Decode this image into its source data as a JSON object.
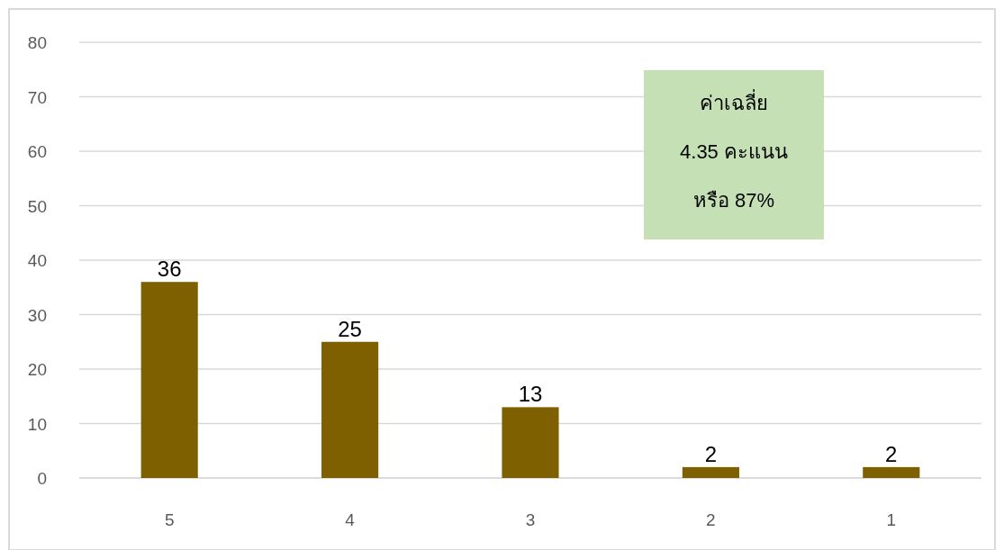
{
  "chart_data": {
    "type": "bar",
    "categories": [
      "5",
      "4",
      "3",
      "2",
      "1"
    ],
    "series": [
      {
        "color": "#7f6000",
        "values": [
          36,
          25,
          13,
          2,
          2
        ]
      }
    ],
    "ylim": [
      0,
      80
    ],
    "yticks": [
      0,
      10,
      20,
      30,
      40,
      50,
      60,
      70,
      80
    ],
    "grid": "y",
    "data_labels": true,
    "annotations": [
      "ค่าเฉลี่ย\n4.35 คะแนน\nหรือ 87%"
    ]
  }
}
